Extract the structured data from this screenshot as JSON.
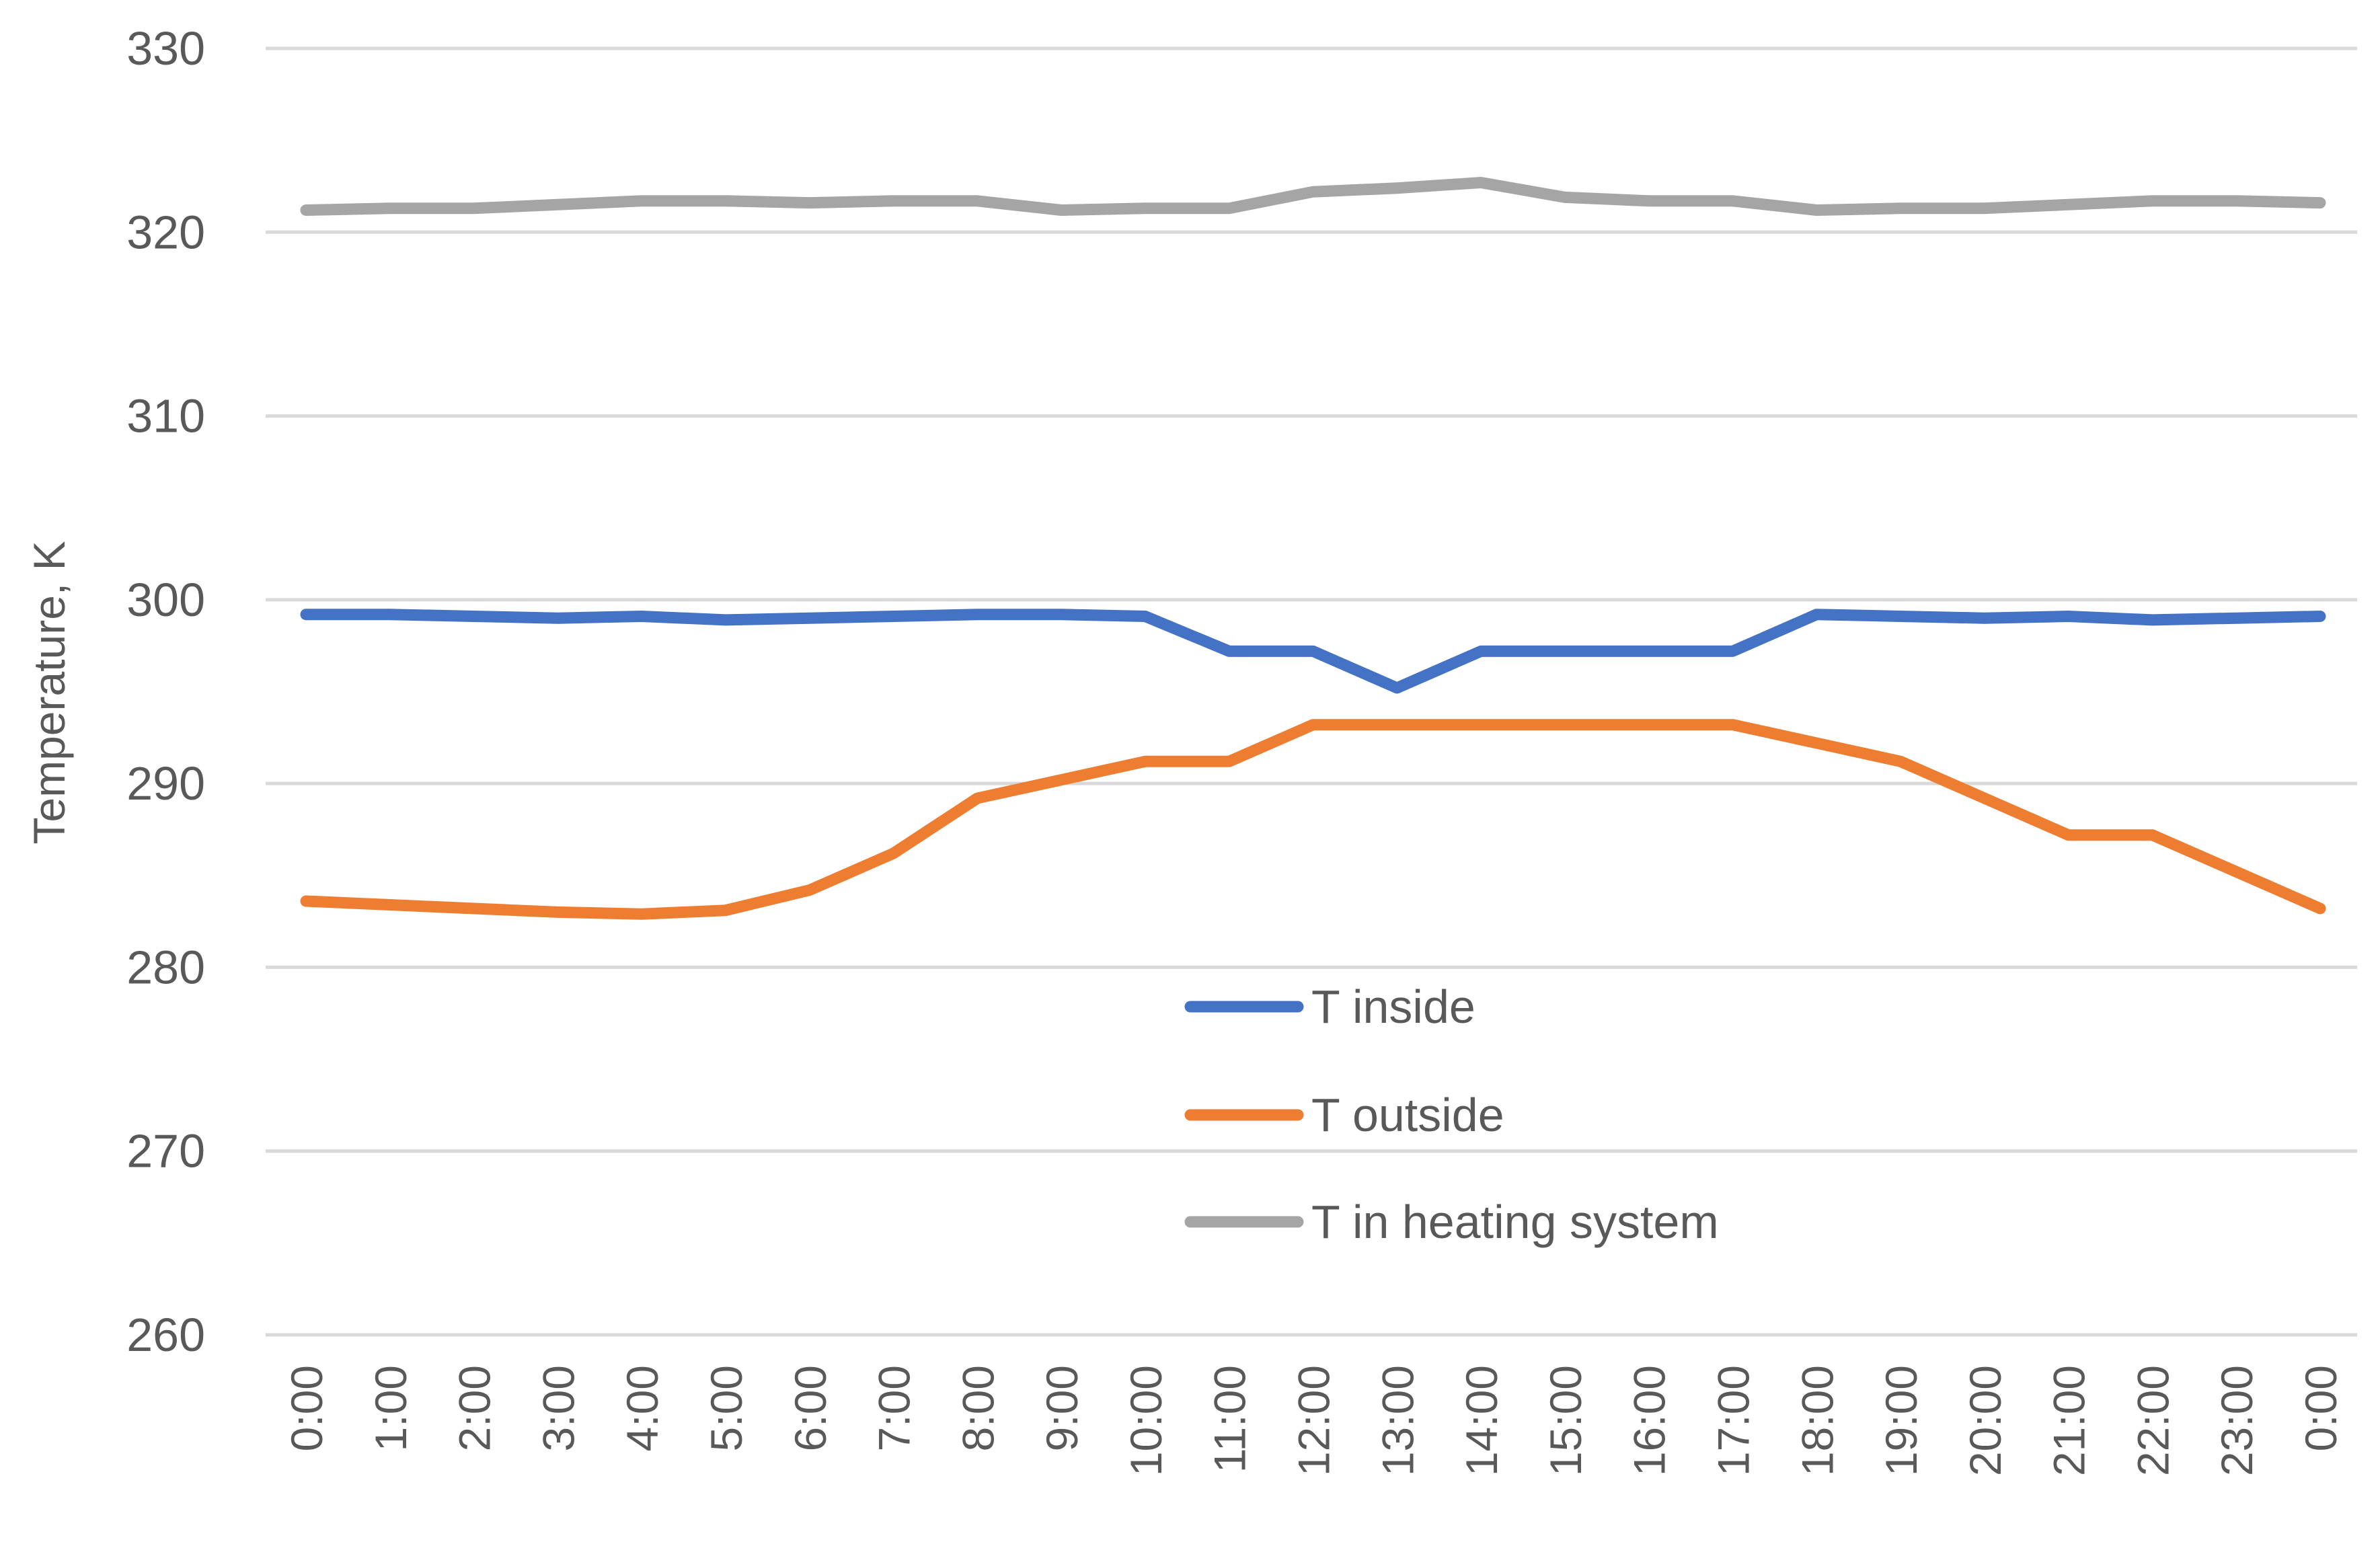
{
  "chart_data": {
    "type": "line",
    "title": "",
    "xlabel": "",
    "ylabel": "Temperature, K",
    "ylim": [
      260,
      330
    ],
    "yticks": [
      "260",
      "270",
      "280",
      "290",
      "300",
      "310",
      "320",
      "330"
    ],
    "grid": true,
    "legend_position": "center",
    "categories": [
      "0:00",
      "1:00",
      "2:00",
      "3:00",
      "4:00",
      "5:00",
      "6:00",
      "7:00",
      "8:00",
      "9:00",
      "10:00",
      "11:00",
      "12:00",
      "13:00",
      "14:00",
      "15:00",
      "16:00",
      "17:00",
      "18:00",
      "19:00",
      "20:00",
      "21:00",
      "22:00",
      "23:00",
      "0:00"
    ],
    "series": [
      {
        "name": "T inside",
        "color": "#4472c4",
        "values": [
          299.2,
          299.2,
          299.1,
          299.0,
          299.1,
          298.9,
          299.0,
          299.1,
          299.2,
          299.2,
          299.1,
          297.2,
          297.2,
          295.2,
          297.2,
          297.2,
          297.2,
          297.2,
          299.2,
          299.1,
          299.0,
          299.1,
          298.9,
          299.0,
          299.1
        ]
      },
      {
        "name": "T outside",
        "color": "#ed7d31",
        "values": [
          283.6,
          283.4,
          283.2,
          283.0,
          282.9,
          283.1,
          284.2,
          286.2,
          289.2,
          290.2,
          291.2,
          291.2,
          293.2,
          293.2,
          293.2,
          293.2,
          293.2,
          293.2,
          292.2,
          291.2,
          289.2,
          287.2,
          287.2,
          285.2,
          283.2
        ]
      },
      {
        "name": "T in heating system",
        "color": "#a5a5a5",
        "values": [
          321.2,
          321.3,
          321.3,
          321.5,
          321.7,
          321.7,
          321.6,
          321.7,
          321.7,
          321.2,
          321.3,
          321.3,
          322.2,
          322.4,
          322.7,
          321.9,
          321.7,
          321.7,
          321.2,
          321.3,
          321.3,
          321.5,
          321.7,
          321.7,
          321.6
        ]
      }
    ]
  }
}
